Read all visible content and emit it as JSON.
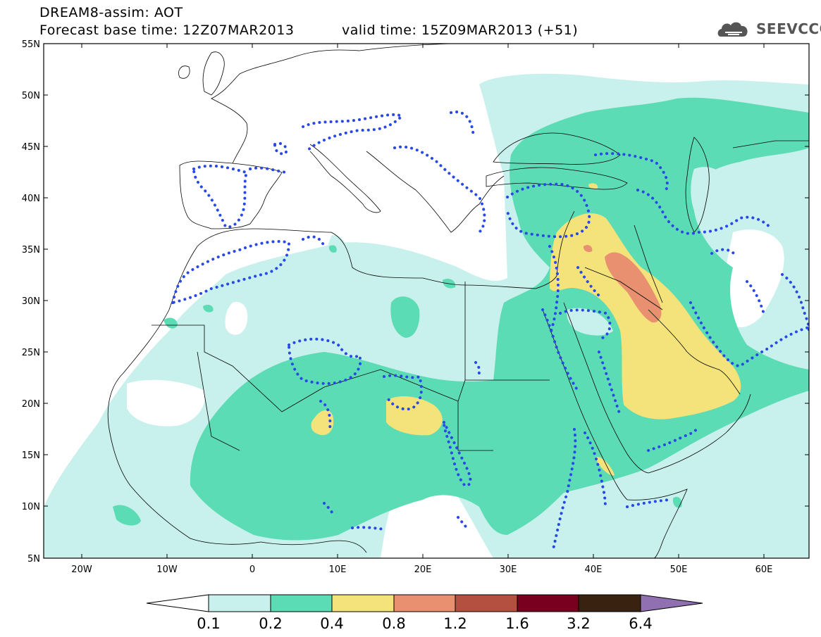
{
  "header": {
    "title_line1": "DREAM8-assim: AOT",
    "title_line2": "Forecast base time: 12Z07MAR2013",
    "title_line3": "valid time: 15Z09MAR2013 (+51)",
    "logo_text": "SEEVCCC"
  },
  "map": {
    "lat_labels": [
      "55N",
      "50N",
      "45N",
      "40N",
      "35N",
      "30N",
      "25N",
      "20N",
      "15N",
      "10N",
      "5N"
    ],
    "lon_labels": [
      "20W",
      "10W",
      "0",
      "10E",
      "20E",
      "30E",
      "40E",
      "50E",
      "60E"
    ],
    "lat_range": [
      5,
      55
    ],
    "lon_range": [
      -25,
      65
    ],
    "field": "AOT"
  },
  "colorbar": {
    "levels": [
      "0.1",
      "0.2",
      "0.4",
      "0.8",
      "1.2",
      "1.6",
      "3.2",
      "6.4"
    ],
    "colors": [
      "#c8f0ec",
      "#5cdcb4",
      "#f4e27a",
      "#e89070",
      "#b45040",
      "#7a0020",
      "#3a2210",
      "#9070b0"
    ]
  },
  "palette": {
    "level1": "#c8f0ec",
    "level2": "#5cdcb4",
    "level3": "#f4e27a",
    "level4": "#e89070",
    "dots": "#2848e8"
  }
}
